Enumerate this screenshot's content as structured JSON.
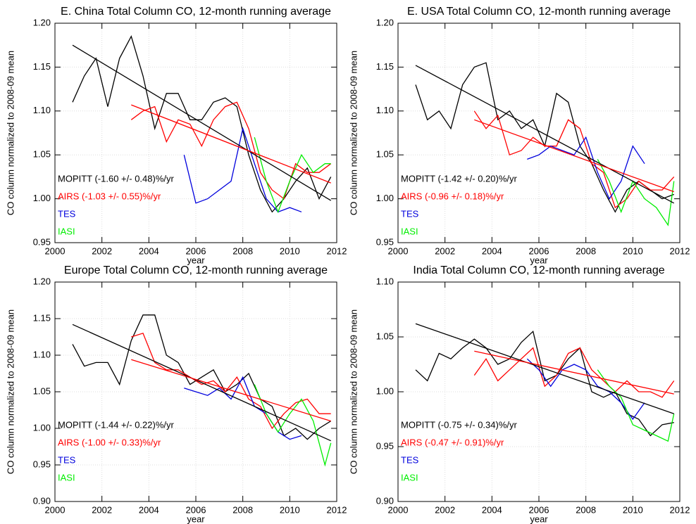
{
  "chart_data": [
    {
      "type": "line",
      "title": "E. China Total Column CO, 12-month running average",
      "xlabel": "year",
      "ylabel": "CO column normalized to 2008-09 mean",
      "xlim": [
        2000,
        2012
      ],
      "xticks": [
        2000,
        2002,
        2004,
        2006,
        2008,
        2010,
        2012
      ],
      "ylim": [
        0.95,
        1.2
      ],
      "yticks": [
        0.95,
        {
          "value": 1.0,
          "label": "1.00"
        },
        1.05,
        {
          "value": 1.1,
          "label": "1.10"
        },
        1.15,
        {
          "value": 1.2,
          "label": "1.20"
        }
      ],
      "grid": true,
      "series": [
        {
          "name": "MOPITT (-1.60 +/- 0.48)%/yr",
          "color": "#000000",
          "x": [
            2000.75,
            2001.25,
            2001.75,
            2002.25,
            2002.75,
            2003.25,
            2003.75,
            2004.25,
            2004.75,
            2005.25,
            2005.75,
            2006.25,
            2006.75,
            2007.25,
            2007.75,
            2008.25,
            2008.75,
            2009.25,
            2009.75,
            2010.25,
            2010.75,
            2011.25,
            2011.75
          ],
          "values": [
            1.11,
            1.14,
            1.16,
            1.105,
            1.16,
            1.185,
            1.14,
            1.08,
            1.12,
            1.12,
            1.09,
            1.09,
            1.11,
            1.115,
            1.105,
            1.05,
            1.01,
            0.985,
            1.0,
            1.02,
            1.035,
            1.0,
            1.025
          ]
        },
        {
          "name": "AIRS (-1.03 +/- 0.55)%/yr",
          "color": "#ff0000",
          "x": [
            2003.25,
            2003.75,
            2004.25,
            2004.75,
            2005.25,
            2005.75,
            2006.25,
            2006.75,
            2007.25,
            2007.75,
            2008.25,
            2008.75,
            2009.25,
            2009.75,
            2010.25,
            2010.75,
            2011.25,
            2011.75
          ],
          "values": [
            1.09,
            1.1,
            1.105,
            1.065,
            1.09,
            1.085,
            1.06,
            1.09,
            1.105,
            1.11,
            1.08,
            1.03,
            1.01,
            1.0,
            1.04,
            1.03,
            1.03,
            1.04
          ]
        },
        {
          "name": "TES",
          "color": "#0000dd",
          "x": [
            2005.5,
            2006,
            2006.5,
            2007,
            2007.5,
            2008,
            2008.5,
            2009,
            2009.5,
            2010,
            2010.5
          ],
          "values": [
            1.05,
            0.995,
            1.0,
            1.01,
            1.02,
            1.08,
            1.04,
            1.0,
            0.985,
            0.99,
            0.985
          ]
        },
        {
          "name": "IASI",
          "color": "#00ee00",
          "x": [
            2008.5,
            2009,
            2009.5,
            2010,
            2010.5,
            2011,
            2011.5,
            2011.75
          ],
          "values": [
            1.07,
            1.02,
            0.985,
            1.02,
            1.05,
            1.03,
            1.04,
            1.04
          ]
        }
      ],
      "trends": [
        {
          "color": "#000000",
          "x": [
            2000.75,
            2011.75
          ],
          "values": [
            1.175,
            0.998
          ]
        },
        {
          "color": "#ff0000",
          "x": [
            2003.25,
            2011.75
          ],
          "values": [
            1.107,
            1.018
          ]
        }
      ]
    },
    {
      "type": "line",
      "title": "E. USA Total Column CO, 12-month running average",
      "xlabel": "year",
      "ylabel": "CO column normalized to 2008-09 mean",
      "xlim": [
        2000,
        2012
      ],
      "xticks": [
        2000,
        2002,
        2004,
        2006,
        2008,
        2010,
        2012
      ],
      "ylim": [
        0.95,
        1.2
      ],
      "yticks": [
        0.95,
        {
          "value": 1.0,
          "label": "1.00"
        },
        1.05,
        {
          "value": 1.1,
          "label": "1.10"
        },
        1.15,
        {
          "value": 1.2,
          "label": "1.20"
        }
      ],
      "grid": true,
      "series": [
        {
          "name": "MOPITT (-1.42 +/- 0.20)%/yr",
          "color": "#000000",
          "x": [
            2000.75,
            2001.25,
            2001.75,
            2002.25,
            2002.75,
            2003.25,
            2003.75,
            2004.25,
            2004.75,
            2005.25,
            2005.75,
            2006.25,
            2006.75,
            2007.25,
            2007.75,
            2008.25,
            2008.75,
            2009.25,
            2009.75,
            2010.25,
            2010.75,
            2011.25,
            2011.75
          ],
          "values": [
            1.13,
            1.09,
            1.1,
            1.08,
            1.13,
            1.15,
            1.155,
            1.09,
            1.1,
            1.08,
            1.09,
            1.06,
            1.12,
            1.11,
            1.06,
            1.04,
            1.01,
            0.985,
            1.01,
            1.02,
            1.01,
            1.0,
            1.005
          ]
        },
        {
          "name": "AIRS (-0.96 +/- 0.18)%/yr",
          "color": "#ff0000",
          "x": [
            2003.25,
            2003.75,
            2004.25,
            2004.75,
            2005.25,
            2005.75,
            2006.25,
            2006.75,
            2007.25,
            2007.75,
            2008.25,
            2008.75,
            2009.25,
            2009.75,
            2010.25,
            2010.75,
            2011.25,
            2011.75
          ],
          "values": [
            1.1,
            1.08,
            1.095,
            1.05,
            1.055,
            1.07,
            1.06,
            1.06,
            1.09,
            1.08,
            1.04,
            1.03,
            0.99,
            1.0,
            1.02,
            1.01,
            1.01,
            1.025
          ]
        },
        {
          "name": "TES",
          "color": "#0000dd",
          "x": [
            2005.5,
            2006,
            2006.5,
            2007,
            2007.5,
            2008,
            2008.5,
            2009,
            2009.5,
            2010,
            2010.5
          ],
          "values": [
            1.045,
            1.05,
            1.06,
            1.055,
            1.05,
            1.07,
            1.03,
            1.0,
            1.02,
            1.06,
            1.04
          ]
        },
        {
          "name": "IASI",
          "color": "#00ee00",
          "x": [
            2008.5,
            2009,
            2009.5,
            2010,
            2010.5,
            2011,
            2011.5,
            2011.75
          ],
          "values": [
            1.045,
            1.02,
            0.985,
            1.02,
            1.0,
            0.99,
            0.97,
            1.02
          ]
        }
      ],
      "trends": [
        {
          "color": "#000000",
          "x": [
            2000.75,
            2011.75
          ],
          "values": [
            1.152,
            0.995
          ]
        },
        {
          "color": "#ff0000",
          "x": [
            2003.25,
            2011.75
          ],
          "values": [
            1.09,
            1.008
          ]
        }
      ]
    },
    {
      "type": "line",
      "title": "Europe Total Column CO, 12-month running average",
      "xlabel": "year",
      "ylabel": "CO column normalized to 2008-09 mean",
      "xlim": [
        2000,
        2012
      ],
      "xticks": [
        2000,
        2002,
        2004,
        2006,
        2008,
        2010,
        2012
      ],
      "ylim": [
        0.9,
        1.2
      ],
      "yticks": [
        {
          "value": 0.9,
          "label": "0.90"
        },
        0.95,
        {
          "value": 1.0,
          "label": "1.00"
        },
        1.05,
        {
          "value": 1.1,
          "label": "1.10"
        },
        1.15,
        {
          "value": 1.2,
          "label": "1.20"
        }
      ],
      "grid": true,
      "series": [
        {
          "name": "MOPITT (-1.44 +/- 0.22)%/yr",
          "color": "#000000",
          "x": [
            2000.75,
            2001.25,
            2001.75,
            2002.25,
            2002.75,
            2003.25,
            2003.75,
            2004.25,
            2004.75,
            2005.25,
            2005.75,
            2006.25,
            2006.75,
            2007.25,
            2007.75,
            2008.25,
            2008.75,
            2009.25,
            2009.75,
            2010.25,
            2010.75,
            2011.25,
            2011.75
          ],
          "values": [
            1.115,
            1.085,
            1.09,
            1.09,
            1.06,
            1.12,
            1.155,
            1.155,
            1.1,
            1.09,
            1.06,
            1.07,
            1.08,
            1.05,
            1.06,
            1.075,
            1.04,
            1.03,
            0.99,
            1.0,
            0.985,
            1.0,
            1.01
          ]
        },
        {
          "name": "AIRS (-1.00 +/- 0.33)%/yr",
          "color": "#ff0000",
          "x": [
            2003.25,
            2003.75,
            2004.25,
            2004.75,
            2005.25,
            2005.75,
            2006.25,
            2006.75,
            2007.25,
            2007.75,
            2008.25,
            2008.75,
            2009.25,
            2009.75,
            2010.25,
            2010.75,
            2011.25,
            2011.75
          ],
          "values": [
            1.125,
            1.13,
            1.09,
            1.08,
            1.08,
            1.07,
            1.06,
            1.065,
            1.05,
            1.07,
            1.04,
            1.03,
            1.0,
            1.02,
            1.035,
            1.04,
            1.02,
            1.02
          ]
        },
        {
          "name": "TES",
          "color": "#0000dd",
          "x": [
            2005.5,
            2006,
            2006.5,
            2007,
            2007.5,
            2008,
            2008.5,
            2009,
            2009.5,
            2010,
            2010.5
          ],
          "values": [
            1.055,
            1.05,
            1.045,
            1.055,
            1.04,
            1.07,
            1.03,
            1.02,
            0.995,
            0.985,
            0.99
          ]
        },
        {
          "name": "IASI",
          "color": "#00ee00",
          "x": [
            2008.5,
            2009,
            2009.5,
            2010,
            2010.5,
            2011,
            2011.5,
            2011.75
          ],
          "values": [
            1.06,
            1.02,
            0.995,
            1.02,
            1.04,
            1.01,
            0.95,
            0.98
          ]
        }
      ],
      "trends": [
        {
          "color": "#000000",
          "x": [
            2000.75,
            2011.75
          ],
          "values": [
            1.142,
            0.983
          ]
        },
        {
          "color": "#ff0000",
          "x": [
            2003.25,
            2011.75
          ],
          "values": [
            1.094,
            1.01
          ]
        }
      ]
    },
    {
      "type": "line",
      "title": "India Total Column CO, 12-month running average",
      "xlabel": "year",
      "ylabel": "CO column normalized to 2008-09 mean",
      "xlim": [
        2000,
        2012
      ],
      "xticks": [
        2000,
        2002,
        2004,
        2006,
        2008,
        2010,
        2012
      ],
      "ylim": [
        0.9,
        1.1
      ],
      "yticks": [
        {
          "value": 0.9,
          "label": "0.90"
        },
        0.95,
        {
          "value": 1.0,
          "label": "1.00"
        },
        1.05,
        {
          "value": 1.1,
          "label": "1.10"
        }
      ],
      "grid": true,
      "series": [
        {
          "name": "MOPITT (-0.75 +/- 0.34)%/yr",
          "color": "#000000",
          "x": [
            2000.75,
            2001.25,
            2001.75,
            2002.25,
            2002.75,
            2003.25,
            2003.75,
            2004.25,
            2004.75,
            2005.25,
            2005.75,
            2006.25,
            2006.75,
            2007.25,
            2007.75,
            2008.25,
            2008.75,
            2009.25,
            2009.75,
            2010.25,
            2010.75,
            2011.25,
            2011.75
          ],
          "values": [
            1.02,
            1.01,
            1.035,
            1.03,
            1.04,
            1.048,
            1.04,
            1.025,
            1.03,
            1.045,
            1.055,
            1.01,
            1.015,
            1.03,
            1.04,
            1.0,
            0.995,
            1.0,
            0.98,
            0.975,
            0.96,
            0.97,
            0.972
          ]
        },
        {
          "name": "AIRS (-0.47 +/- 0.91)%/yr",
          "color": "#ff0000",
          "x": [
            2003.25,
            2003.75,
            2004.25,
            2004.75,
            2005.25,
            2005.75,
            2006.25,
            2006.75,
            2007.25,
            2007.75,
            2008.25,
            2008.75,
            2009.25,
            2009.75,
            2010.25,
            2010.75,
            2011.25,
            2011.75
          ],
          "values": [
            1.015,
            1.03,
            1.01,
            1.02,
            1.03,
            1.04,
            1.005,
            1.015,
            1.035,
            1.04,
            1.02,
            1.01,
            1.0,
            1.01,
            1.0,
            1.0,
            0.995,
            1.01
          ]
        },
        {
          "name": "TES",
          "color": "#0000dd",
          "x": [
            2005.5,
            2006,
            2006.5,
            2007,
            2007.5,
            2008,
            2008.5,
            2009,
            2009.5,
            2010,
            2010.5
          ],
          "values": [
            1.03,
            1.02,
            1.005,
            1.02,
            1.025,
            1.02,
            1.005,
            1.0,
            0.99,
            0.975,
            0.99
          ]
        },
        {
          "name": "IASI",
          "color": "#00ee00",
          "x": [
            2008.5,
            2009,
            2009.5,
            2010,
            2010.5,
            2011,
            2011.5,
            2011.75
          ],
          "values": [
            1.02,
            1.005,
            0.995,
            0.97,
            0.965,
            0.96,
            0.955,
            0.98
          ]
        }
      ],
      "trends": [
        {
          "color": "#000000",
          "x": [
            2000.75,
            2011.75
          ],
          "values": [
            1.062,
            0.98
          ]
        },
        {
          "color": "#ff0000",
          "x": [
            2003.25,
            2011.75
          ],
          "values": [
            1.037,
            0.998
          ]
        }
      ]
    }
  ]
}
